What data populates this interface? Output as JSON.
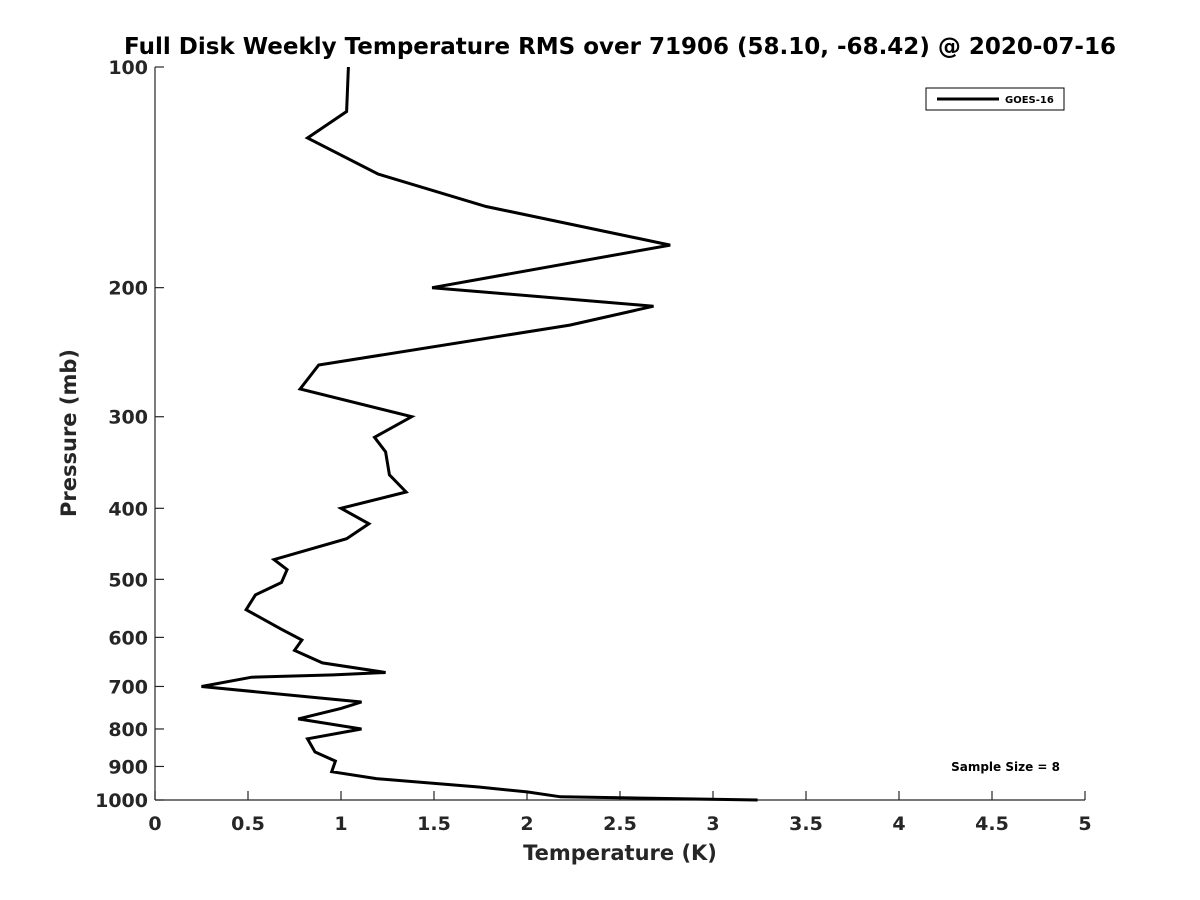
{
  "chart_data": {
    "type": "line",
    "title": "Full Disk Weekly Temperature RMS over 71906 (58.10, -68.42) @ 2020-07-16",
    "xlabel": "Temperature (K)",
    "ylabel": "Pressure (mb)",
    "xlim": [
      0,
      5
    ],
    "ylim": [
      1000,
      100
    ],
    "yscale": "log",
    "y_reversed": true,
    "grid": false,
    "legend_position": "top-right",
    "xticks": [
      0,
      0.5,
      1,
      1.5,
      2,
      2.5,
      3,
      3.5,
      4,
      4.5,
      5
    ],
    "xtick_labels": [
      "0",
      "0.5",
      "1",
      "1.5",
      "2",
      "2.5",
      "3",
      "3.5",
      "4",
      "4.5",
      "5"
    ],
    "yticks": [
      100,
      200,
      300,
      400,
      500,
      600,
      700,
      800,
      900,
      1000
    ],
    "ytick_labels": [
      "100",
      "200",
      "300",
      "400",
      "500",
      "600",
      "700",
      "800",
      "900",
      "1000"
    ],
    "series": [
      {
        "name": "GOES-16",
        "color": "#000000",
        "x": [
          1.04,
          1.03,
          0.82,
          1.2,
          1.78,
          2.77,
          1.49,
          2.68,
          2.23,
          0.88,
          0.78,
          1.38,
          1.18,
          1.24,
          1.26,
          1.35,
          1.0,
          1.15,
          1.03,
          0.64,
          0.71,
          0.68,
          0.54,
          0.49,
          0.68,
          0.79,
          0.75,
          0.9,
          1.24,
          0.96,
          0.52,
          0.25,
          1.11,
          1.0,
          0.77,
          1.11,
          0.82,
          0.86,
          0.97,
          0.95,
          1.19,
          1.74,
          2.0,
          2.18,
          3.24
        ],
        "y": [
          100,
          115,
          125,
          140,
          155,
          175,
          200,
          212,
          225,
          255,
          275,
          300,
          320,
          335,
          360,
          380,
          400,
          420,
          440,
          470,
          485,
          505,
          525,
          550,
          585,
          605,
          625,
          650,
          670,
          675,
          680,
          700,
          735,
          750,
          775,
          800,
          825,
          860,
          885,
          915,
          935,
          960,
          975,
          990,
          1000
        ]
      }
    ],
    "annotation": "Sample Size = 8"
  }
}
